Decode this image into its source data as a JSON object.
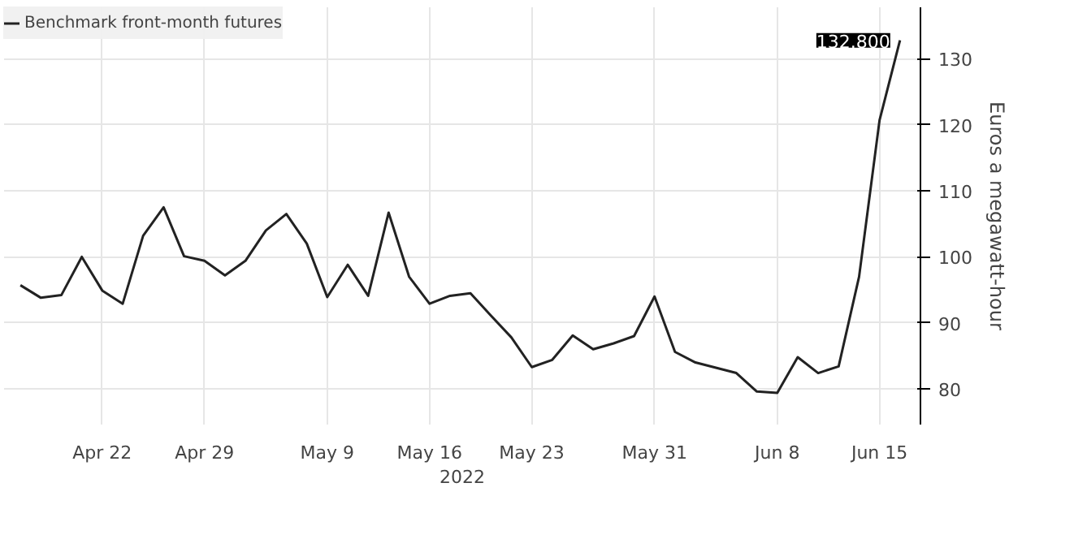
{
  "chart_data": {
    "type": "line",
    "ylabel": "Euros a megawatt-hour",
    "xlabel": "2022",
    "categories": [
      null,
      null,
      null,
      null,
      "Apr 22",
      null,
      null,
      null,
      null,
      "Apr 29",
      null,
      null,
      null,
      null,
      null,
      "May 9",
      null,
      null,
      null,
      null,
      "May 16",
      null,
      null,
      null,
      null,
      "May 23",
      null,
      null,
      null,
      null,
      null,
      "May 31",
      null,
      null,
      null,
      null,
      null,
      "Jun 8",
      null,
      null,
      null,
      null,
      "Jun 15",
      null
    ],
    "series": [
      {
        "name": "Benchmark front-month futures",
        "color": "#222222",
        "values": [
          95.7,
          93.8,
          94.2,
          100,
          94.9,
          92.9,
          103.2,
          107.5,
          100.1,
          99.4,
          97.2,
          99.4,
          104,
          106.5,
          102,
          93.9,
          98.8,
          94.1,
          106.7,
          97,
          92.9,
          94.1,
          94.5,
          91.1,
          87.8,
          83.3,
          84.4,
          88.1,
          86.0,
          86.9,
          88.0,
          94.0,
          85.6,
          84.0,
          83.2,
          82.4,
          79.6,
          79.4,
          84.8,
          82.4,
          83.4,
          97.0,
          120.7,
          132.8
        ]
      }
    ],
    "ylim": [
      74.6,
      137.8
    ],
    "yticks": [
      80,
      90,
      100,
      110,
      120,
      130
    ],
    "grid": true,
    "legend": "top left",
    "annotations": [
      "132.800"
    ]
  }
}
